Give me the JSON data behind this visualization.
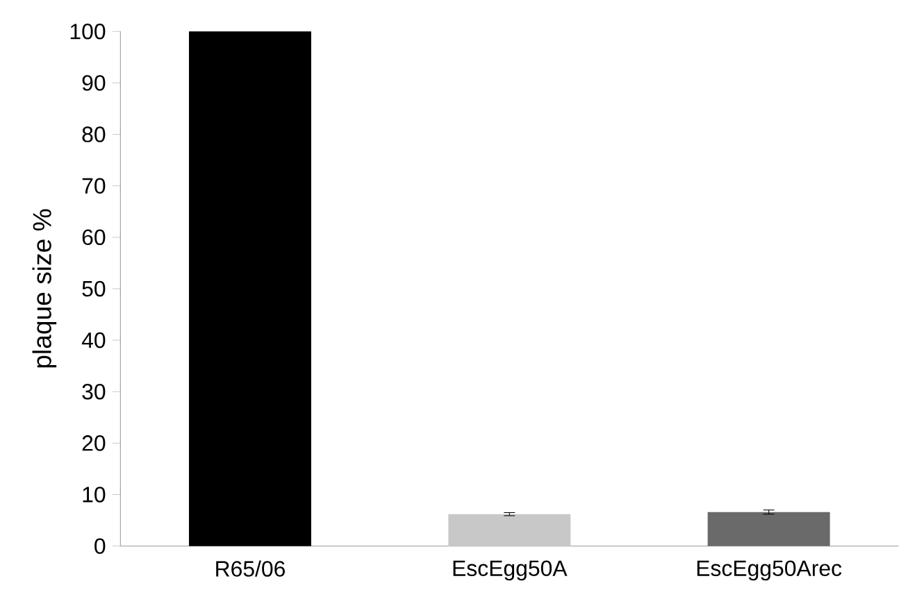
{
  "chart_data": {
    "type": "bar",
    "ylabel": "plaque size %",
    "categories": [
      "R65/06",
      "EscEgg50A",
      "EscEgg50Arec"
    ],
    "values": [
      100,
      6.2,
      6.6
    ],
    "colors": [
      "#000000",
      "#c8c8c8",
      "#6a6a6a"
    ],
    "errors": [
      null,
      0.3,
      0.4
    ],
    "ylim": [
      0,
      100
    ],
    "yticks": [
      0,
      10,
      20,
      30,
      40,
      50,
      60,
      70,
      80,
      90,
      100
    ]
  }
}
